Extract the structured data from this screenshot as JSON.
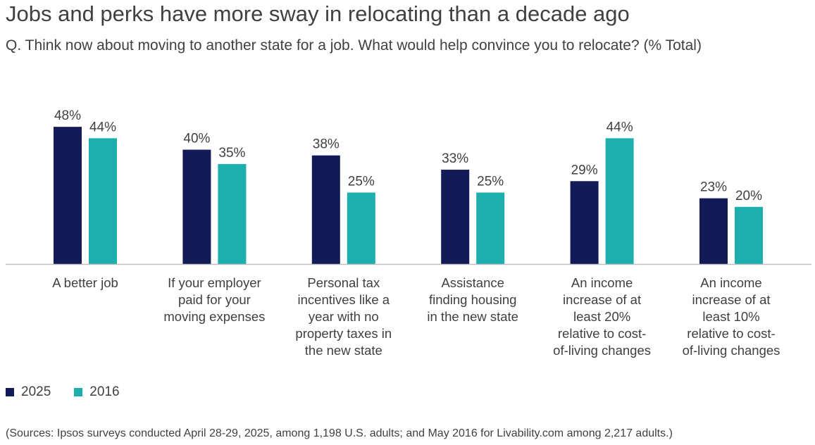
{
  "chart_data": {
    "type": "bar",
    "title": "Jobs and perks have more sway in relocating than a decade ago",
    "subtitle": "Q. Think now about moving to another state for a job. What would help convince you to relocate? (% Total)",
    "categories": [
      "A better job",
      "If your employer paid for your moving expenses",
      "Personal tax incentives like a year with no property taxes in the new state",
      "Assistance finding housing in the new state",
      "An income increase of at least 20% relative to cost-of-living changes",
      "An income increase of at least 10% relative to cost-of-living changes"
    ],
    "category_label_lines": [
      [
        "A better job"
      ],
      [
        "If your employer",
        "paid for your",
        "moving expenses"
      ],
      [
        "Personal tax",
        "incentives like a",
        "year with no",
        "property taxes in",
        "the new state"
      ],
      [
        "Assistance",
        "finding housing",
        "in the new state"
      ],
      [
        "An income",
        "increase of at",
        "least 20%",
        "relative to cost-",
        "of-living changes"
      ],
      [
        "An income",
        "increase of at",
        "least 10%",
        "relative to cost-",
        "of-living changes"
      ]
    ],
    "series": [
      {
        "name": "2025",
        "color": "#121b57",
        "values": [
          48,
          40,
          38,
          33,
          29,
          23
        ]
      },
      {
        "name": "2016",
        "color": "#1daeae",
        "values": [
          44,
          35,
          25,
          25,
          44,
          20
        ]
      }
    ],
    "value_suffix": "%",
    "xlabel": "",
    "ylabel": "",
    "ylim": [
      0,
      50
    ],
    "grid": false,
    "y_axis_visible": false,
    "legend_position": "bottom-left",
    "source": "(Sources: Ipsos surveys conducted April 28-29, 2025, among 1,198 U.S. adults; and May 2016 for Livability.com among 2,217 adults.)"
  },
  "colors": {
    "text": "#404040",
    "axis": "#bfbfbf"
  }
}
